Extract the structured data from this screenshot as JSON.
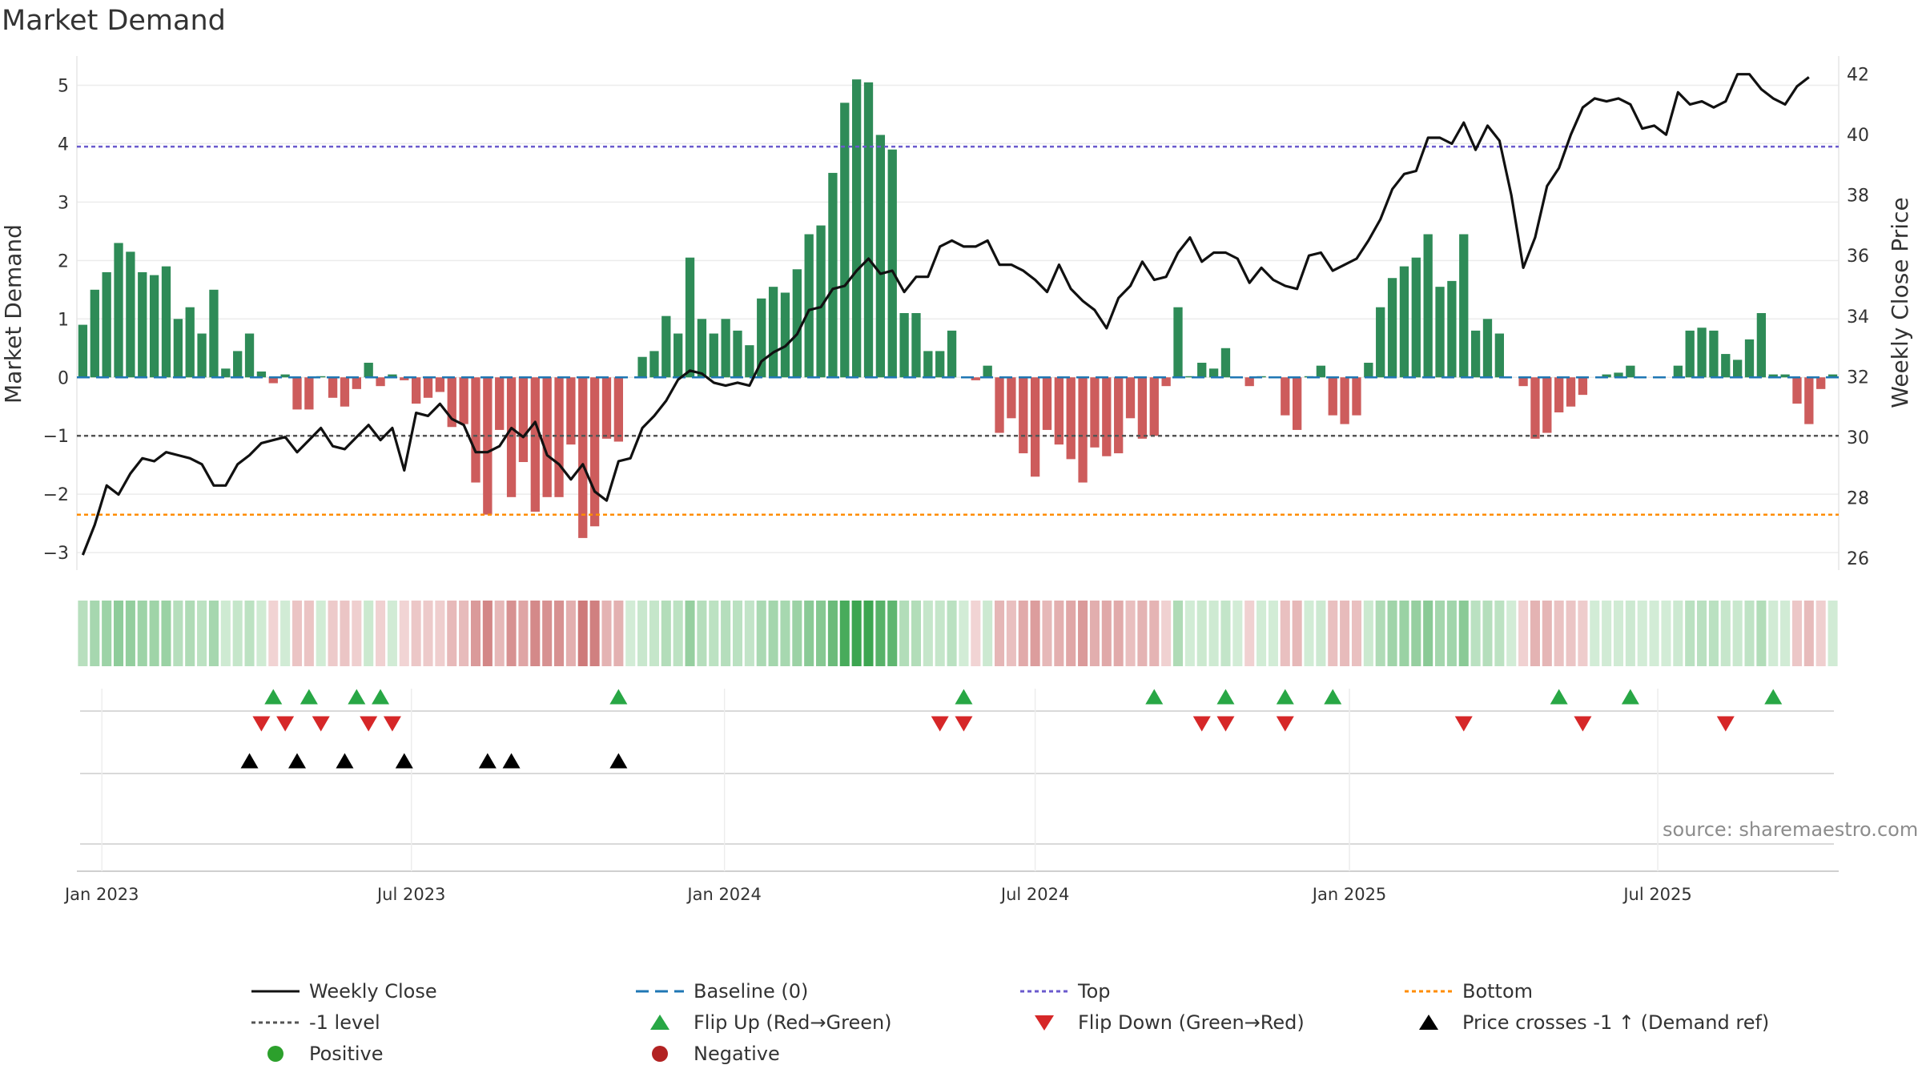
{
  "title": "Market Demand",
  "source": "source: sharemaestro.com",
  "colors": {
    "positive": "#2e8b57",
    "negative": "#cd5c5c",
    "price": "#111111",
    "top": "#6a5acd",
    "bottom": "#ff8c00",
    "level": "#555555",
    "baseline": "#1f77b4",
    "flip_up": "#28a745",
    "flip_down": "#d62728",
    "cross": "#000000",
    "pos_marker": "#2ca02c",
    "neg_marker": "#b22222"
  },
  "chart_data": {
    "type": "bar",
    "title": "Market Demand",
    "ylabel": "Market Demand",
    "y2label": "Weekly Close Price",
    "ylim": [
      -3.3,
      5.5
    ],
    "y2lim": [
      25.6,
      42.6
    ],
    "yticks": [
      -3,
      -2,
      -1,
      0,
      1,
      2,
      3,
      4,
      5
    ],
    "yticklabels": [
      "−3",
      "−2",
      "−1",
      "0",
      "1",
      "2",
      "3",
      "4",
      "5"
    ],
    "y2ticks": [
      26,
      28,
      30,
      32,
      34,
      36,
      38,
      40,
      42
    ],
    "xlabels": [
      "Jan 2023",
      "Jul 2023",
      "Jan 2024",
      "Jul 2024",
      "Jan 2025",
      "Jul 2025"
    ],
    "xtick_weeks": [
      1.6,
      27.6,
      53.9,
      80,
      106.4,
      132.3
    ],
    "top_level": 3.95,
    "bottom_level": -2.35,
    "minus_one_level": -1,
    "baseline": 0,
    "demand": [
      0.9,
      1.5,
      1.8,
      2.3,
      2.15,
      1.8,
      1.75,
      1.9,
      1.0,
      1.2,
      0.75,
      1.5,
      0.15,
      0.45,
      0.75,
      0.1,
      -0.1,
      0.05,
      -0.55,
      -0.55,
      0.02,
      -0.35,
      -0.5,
      -0.2,
      0.25,
      -0.15,
      0.05,
      -0.05,
      -0.45,
      -0.35,
      -0.25,
      -0.85,
      -0.8,
      -1.8,
      -2.35,
      -0.9,
      -2.05,
      -1.45,
      -2.3,
      -2.05,
      -2.05,
      -1.15,
      -2.75,
      -2.55,
      -1.05,
      -1.1,
      0.0,
      0.35,
      0.45,
      1.05,
      0.75,
      2.05,
      1.0,
      0.75,
      1.0,
      0.8,
      0.55,
      1.35,
      1.55,
      1.45,
      1.85,
      2.45,
      2.6,
      3.5,
      4.7,
      5.1,
      5.05,
      4.15,
      3.9,
      1.1,
      1.1,
      0.45,
      0.45,
      0.8,
      0.0,
      -0.05,
      0.2,
      -0.95,
      -0.7,
      -1.3,
      -1.7,
      -0.9,
      -1.15,
      -1.4,
      -1.8,
      -1.2,
      -1.35,
      -1.3,
      -0.7,
      -1.05,
      -1.0,
      -0.15,
      1.2,
      0.02,
      0.25,
      0.15,
      0.5,
      0.0,
      -0.15,
      0.02,
      0.0,
      -0.65,
      -0.9,
      0.02,
      0.2,
      -0.65,
      -0.8,
      -0.65,
      0.25,
      1.2,
      1.7,
      1.9,
      2.05,
      2.45,
      1.55,
      1.65,
      2.45,
      0.8,
      1.0,
      0.75,
      0.0,
      -0.15,
      -1.05,
      -0.95,
      -0.6,
      -0.5,
      -0.3,
      0.0,
      0.05,
      0.08,
      0.2,
      0.0,
      0.0,
      0.0,
      0.2,
      0.8,
      0.85,
      0.8,
      0.4,
      0.3,
      0.65,
      1.1,
      0.05,
      0.05,
      -0.45,
      -0.8,
      -0.2,
      0.05
    ],
    "price": [
      26.1,
      27.1,
      28.4,
      28.1,
      28.8,
      29.3,
      29.2,
      29.5,
      29.4,
      29.3,
      29.1,
      28.4,
      28.4,
      29.1,
      29.4,
      29.8,
      29.9,
      30.0,
      29.5,
      29.9,
      30.3,
      29.7,
      29.6,
      30.0,
      30.4,
      29.9,
      30.3,
      28.9,
      30.8,
      30.7,
      31.1,
      30.6,
      30.4,
      29.5,
      29.5,
      29.7,
      30.3,
      30.0,
      30.5,
      29.4,
      29.1,
      28.6,
      29.1,
      28.2,
      27.9,
      29.2,
      29.3,
      30.3,
      30.7,
      31.2,
      31.9,
      32.2,
      32.1,
      31.8,
      31.7,
      31.8,
      31.7,
      32.5,
      32.8,
      33.0,
      33.4,
      34.2,
      34.3,
      34.9,
      35.0,
      35.5,
      35.9,
      35.4,
      35.5,
      34.8,
      35.3,
      35.3,
      36.3,
      36.5,
      36.3,
      36.3,
      36.5,
      35.7,
      35.7,
      35.5,
      35.2,
      34.8,
      35.7,
      34.9,
      34.5,
      34.2,
      33.6,
      34.6,
      35.0,
      35.8,
      35.2,
      35.3,
      36.1,
      36.6,
      35.8,
      36.1,
      36.1,
      35.9,
      35.1,
      35.6,
      35.2,
      35.0,
      34.9,
      36.0,
      36.1,
      35.5,
      35.7,
      35.9,
      36.5,
      37.2,
      38.2,
      38.7,
      38.8,
      39.9,
      39.9,
      39.7,
      40.4,
      39.5,
      40.3,
      39.8,
      38.0,
      35.6,
      36.6,
      38.3,
      38.9,
      40.0,
      40.9,
      41.2,
      41.1,
      41.2,
      41.0,
      40.2,
      40.3,
      40.0,
      41.4,
      41.0,
      41.1,
      40.9,
      41.1,
      42.0,
      42.0,
      41.5,
      41.2,
      41.0,
      41.6,
      41.9
    ],
    "flip_up_weeks": [
      16,
      19,
      23,
      25,
      45,
      74,
      90,
      96,
      101,
      105,
      124,
      130,
      142
    ],
    "flip_down_weeks": [
      15,
      17,
      20,
      24,
      26,
      72,
      74,
      94,
      96,
      101,
      116,
      126,
      138
    ],
    "cross_weeks": [
      14,
      18,
      22,
      27,
      34,
      36,
      45
    ]
  },
  "legend": [
    {
      "label": "Weekly Close",
      "symbol": "line-solid",
      "color": "#111111"
    },
    {
      "label": "Baseline (0)",
      "symbol": "line-dash",
      "color": "#1f77b4"
    },
    {
      "label": "Top",
      "symbol": "line-dot",
      "color": "#6a5acd"
    },
    {
      "label": "Bottom",
      "symbol": "line-dot",
      "color": "#ff8c00"
    },
    {
      "label": "-1 level",
      "symbol": "line-dot",
      "color": "#555555"
    },
    {
      "label": "Flip Up (Red→Green)",
      "symbol": "tri-up",
      "color": "#28a745"
    },
    {
      "label": "Flip Down (Green→Red)",
      "symbol": "tri-down",
      "color": "#d62728"
    },
    {
      "label": "Price crosses -1 ↑ (Demand ref)",
      "symbol": "tri-up",
      "color": "#000000"
    },
    {
      "label": "Positive",
      "symbol": "dot",
      "color": "#2ca02c"
    },
    {
      "label": "Negative",
      "symbol": "dot",
      "color": "#b22222"
    }
  ]
}
